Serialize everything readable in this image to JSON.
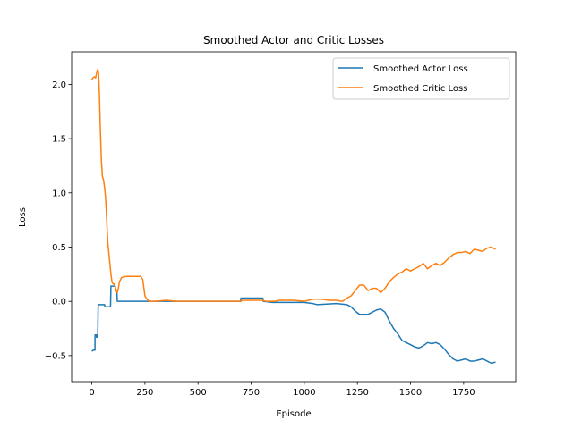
{
  "chart_data": {
    "type": "line",
    "title": "Smoothed Actor and Critic Losses",
    "xlabel": "Episode",
    "ylabel": "Loss",
    "xlim": [
      -95,
      1995
    ],
    "ylim": [
      -0.74,
      2.3
    ],
    "xticks": [
      0,
      250,
      500,
      750,
      1000,
      1250,
      1500,
      1750
    ],
    "yticks": [
      -0.5,
      0.0,
      0.5,
      1.0,
      1.5,
      2.0
    ],
    "xtick_labels": [
      "0",
      "250",
      "500",
      "750",
      "1000",
      "1250",
      "1500",
      "1750"
    ],
    "ytick_labels": [
      "−0.5",
      "0.0",
      "0.5",
      "1.0",
      "1.5",
      "2.0"
    ],
    "legend_position": "top-right",
    "series": [
      {
        "name": "Smoothed Actor Loss",
        "color": "#1f77b4",
        "points": [
          [
            0,
            -0.46
          ],
          [
            8,
            -0.45
          ],
          [
            15,
            -0.45
          ],
          [
            15,
            -0.31
          ],
          [
            22,
            -0.31
          ],
          [
            22,
            -0.33
          ],
          [
            28,
            -0.33
          ],
          [
            30,
            -0.03
          ],
          [
            60,
            -0.03
          ],
          [
            62,
            -0.05
          ],
          [
            88,
            -0.05
          ],
          [
            90,
            0.14
          ],
          [
            110,
            0.14
          ],
          [
            112,
            0.1
          ],
          [
            118,
            0.1
          ],
          [
            120,
            0.0
          ],
          [
            400,
            0.0
          ],
          [
            700,
            0.0
          ],
          [
            702,
            0.03
          ],
          [
            805,
            0.03
          ],
          [
            807,
            0.0
          ],
          [
            850,
            -0.01
          ],
          [
            950,
            -0.01
          ],
          [
            1000,
            -0.01
          ],
          [
            1040,
            -0.02
          ],
          [
            1060,
            -0.03
          ],
          [
            1150,
            -0.02
          ],
          [
            1200,
            -0.03
          ],
          [
            1220,
            -0.05
          ],
          [
            1240,
            -0.09
          ],
          [
            1260,
            -0.12
          ],
          [
            1300,
            -0.12
          ],
          [
            1320,
            -0.1
          ],
          [
            1340,
            -0.08
          ],
          [
            1360,
            -0.07
          ],
          [
            1380,
            -0.1
          ],
          [
            1400,
            -0.18
          ],
          [
            1420,
            -0.25
          ],
          [
            1440,
            -0.3
          ],
          [
            1460,
            -0.36
          ],
          [
            1480,
            -0.38
          ],
          [
            1500,
            -0.4
          ],
          [
            1520,
            -0.42
          ],
          [
            1540,
            -0.43
          ],
          [
            1560,
            -0.41
          ],
          [
            1580,
            -0.38
          ],
          [
            1600,
            -0.39
          ],
          [
            1620,
            -0.38
          ],
          [
            1640,
            -0.4
          ],
          [
            1660,
            -0.44
          ],
          [
            1680,
            -0.49
          ],
          [
            1700,
            -0.53
          ],
          [
            1720,
            -0.55
          ],
          [
            1740,
            -0.54
          ],
          [
            1760,
            -0.53
          ],
          [
            1780,
            -0.55
          ],
          [
            1800,
            -0.55
          ],
          [
            1820,
            -0.54
          ],
          [
            1840,
            -0.53
          ],
          [
            1860,
            -0.55
          ],
          [
            1880,
            -0.57
          ],
          [
            1900,
            -0.56
          ]
        ]
      },
      {
        "name": "Smoothed Critic Loss",
        "color": "#ff7f0e",
        "points": [
          [
            0,
            2.04
          ],
          [
            5,
            2.06
          ],
          [
            12,
            2.07
          ],
          [
            18,
            2.06
          ],
          [
            22,
            2.1
          ],
          [
            28,
            2.14
          ],
          [
            32,
            2.1
          ],
          [
            36,
            1.9
          ],
          [
            40,
            1.6
          ],
          [
            45,
            1.3
          ],
          [
            50,
            1.15
          ],
          [
            55,
            1.12
          ],
          [
            60,
            1.05
          ],
          [
            65,
            0.95
          ],
          [
            70,
            0.75
          ],
          [
            75,
            0.55
          ],
          [
            80,
            0.45
          ],
          [
            85,
            0.35
          ],
          [
            90,
            0.25
          ],
          [
            95,
            0.18
          ],
          [
            100,
            0.16
          ],
          [
            105,
            0.16
          ],
          [
            110,
            0.14
          ],
          [
            115,
            0.1
          ],
          [
            120,
            0.08
          ],
          [
            125,
            0.12
          ],
          [
            130,
            0.18
          ],
          [
            140,
            0.22
          ],
          [
            160,
            0.23
          ],
          [
            200,
            0.23
          ],
          [
            230,
            0.23
          ],
          [
            240,
            0.2
          ],
          [
            250,
            0.05
          ],
          [
            260,
            0.02
          ],
          [
            270,
            0.0
          ],
          [
            300,
            0.0
          ],
          [
            350,
            0.01
          ],
          [
            400,
            0.0
          ],
          [
            500,
            0.0
          ],
          [
            700,
            0.0
          ],
          [
            710,
            0.01
          ],
          [
            800,
            0.01
          ],
          [
            820,
            0.0
          ],
          [
            860,
            0.0
          ],
          [
            880,
            0.01
          ],
          [
            950,
            0.01
          ],
          [
            1000,
            0.0
          ],
          [
            1040,
            0.02
          ],
          [
            1080,
            0.02
          ],
          [
            1120,
            0.01
          ],
          [
            1150,
            0.01
          ],
          [
            1180,
            0.0
          ],
          [
            1200,
            0.03
          ],
          [
            1220,
            0.05
          ],
          [
            1240,
            0.1
          ],
          [
            1260,
            0.15
          ],
          [
            1280,
            0.15
          ],
          [
            1300,
            0.1
          ],
          [
            1320,
            0.12
          ],
          [
            1340,
            0.12
          ],
          [
            1360,
            0.08
          ],
          [
            1380,
            0.12
          ],
          [
            1400,
            0.18
          ],
          [
            1420,
            0.22
          ],
          [
            1440,
            0.25
          ],
          [
            1460,
            0.27
          ],
          [
            1480,
            0.3
          ],
          [
            1500,
            0.28
          ],
          [
            1520,
            0.3
          ],
          [
            1540,
            0.32
          ],
          [
            1560,
            0.35
          ],
          [
            1580,
            0.3
          ],
          [
            1600,
            0.33
          ],
          [
            1620,
            0.35
          ],
          [
            1640,
            0.33
          ],
          [
            1660,
            0.36
          ],
          [
            1680,
            0.4
          ],
          [
            1700,
            0.43
          ],
          [
            1720,
            0.45
          ],
          [
            1740,
            0.45
          ],
          [
            1760,
            0.46
          ],
          [
            1780,
            0.44
          ],
          [
            1800,
            0.48
          ],
          [
            1820,
            0.47
          ],
          [
            1840,
            0.46
          ],
          [
            1860,
            0.49
          ],
          [
            1880,
            0.5
          ],
          [
            1900,
            0.48
          ]
        ]
      }
    ]
  }
}
